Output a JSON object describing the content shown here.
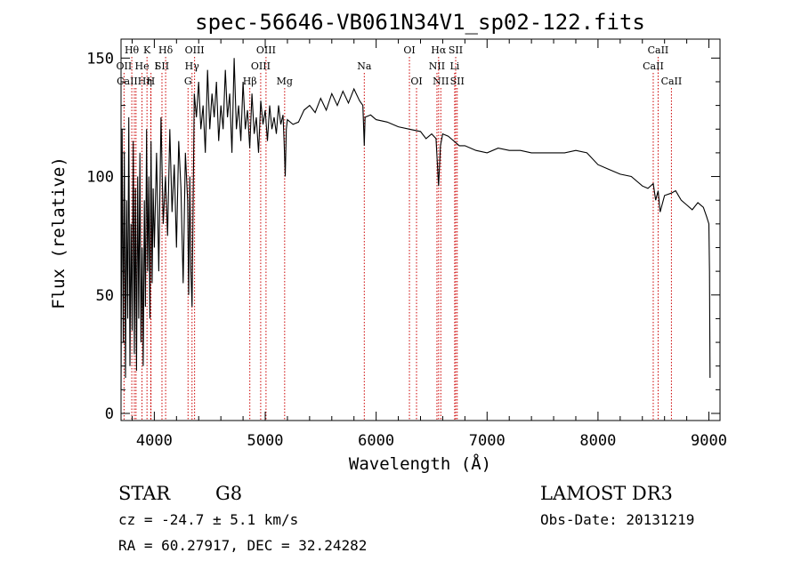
{
  "chart_data": {
    "type": "line",
    "title": "spec-56646-VB061N34V1_sp02-122.fits",
    "xlabel": "Wavelength (Å)",
    "ylabel": "Flux (relative)",
    "xlim": [
      3700,
      9100
    ],
    "ylim": [
      -3,
      158
    ],
    "xticks": [
      4000,
      5000,
      6000,
      7000,
      8000,
      9000
    ],
    "yticks": [
      0,
      50,
      100,
      150
    ],
    "line_color": "#000000",
    "marker_color": "#cc0000",
    "series": [
      {
        "name": "flux",
        "x": [
          3700,
          3710,
          3720,
          3730,
          3740,
          3750,
          3760,
          3770,
          3780,
          3790,
          3800,
          3810,
          3820,
          3830,
          3840,
          3850,
          3860,
          3870,
          3880,
          3890,
          3900,
          3910,
          3920,
          3930,
          3940,
          3950,
          3960,
          3970,
          3980,
          3990,
          4000,
          4020,
          4040,
          4060,
          4080,
          4100,
          4120,
          4140,
          4160,
          4180,
          4200,
          4220,
          4240,
          4260,
          4280,
          4300,
          4310,
          4320,
          4330,
          4340,
          4360,
          4380,
          4400,
          4420,
          4440,
          4460,
          4480,
          4500,
          4520,
          4540,
          4560,
          4580,
          4600,
          4620,
          4640,
          4660,
          4680,
          4700,
          4720,
          4740,
          4760,
          4780,
          4800,
          4820,
          4840,
          4860,
          4880,
          4900,
          4920,
          4940,
          4960,
          4980,
          5000,
          5020,
          5040,
          5060,
          5080,
          5100,
          5120,
          5140,
          5160,
          5170,
          5180,
          5190,
          5200,
          5250,
          5300,
          5350,
          5400,
          5450,
          5500,
          5550,
          5600,
          5650,
          5700,
          5750,
          5800,
          5850,
          5880,
          5893,
          5900,
          5950,
          6000,
          6100,
          6200,
          6300,
          6400,
          6450,
          6500,
          6540,
          6563,
          6580,
          6600,
          6650,
          6700,
          6750,
          6800,
          6900,
          7000,
          7100,
          7200,
          7300,
          7400,
          7500,
          7600,
          7700,
          7800,
          7900,
          8000,
          8100,
          8200,
          8300,
          8400,
          8450,
          8498,
          8520,
          8542,
          8560,
          8600,
          8662,
          8700,
          8750,
          8800,
          8850,
          8900,
          8950,
          8980,
          9000,
          9005,
          9010
        ],
        "values": [
          10,
          120,
          30,
          110,
          15,
          90,
          40,
          125,
          20,
          80,
          35,
          115,
          25,
          95,
          18,
          100,
          40,
          110,
          30,
          70,
          20,
          90,
          45,
          120,
          60,
          100,
          40,
          115,
          55,
          95,
          70,
          110,
          60,
          125,
          80,
          100,
          75,
          120,
          85,
          105,
          70,
          115,
          95,
          55,
          110,
          90,
          50,
          100,
          60,
          45,
          135,
          125,
          140,
          120,
          130,
          110,
          145,
          120,
          135,
          125,
          140,
          115,
          130,
          120,
          145,
          125,
          135,
          110,
          150,
          120,
          130,
          115,
          140,
          120,
          128,
          112,
          135,
          118,
          125,
          110,
          132,
          122,
          128,
          115,
          130,
          120,
          125,
          118,
          130,
          122,
          126,
          115,
          100,
          120,
          124,
          122,
          123,
          128,
          130,
          127,
          133,
          128,
          135,
          130,
          136,
          131,
          137,
          132,
          130,
          113,
          125,
          126,
          124,
          123,
          121,
          120,
          119,
          116,
          118,
          116,
          96,
          113,
          118,
          117,
          115,
          113,
          113,
          111,
          110,
          112,
          111,
          111,
          110,
          110,
          110,
          110,
          111,
          110,
          105,
          103,
          101,
          100,
          96,
          95,
          97,
          90,
          94,
          85,
          92,
          93,
          94,
          90,
          88,
          86,
          89,
          87,
          83,
          80,
          60,
          15
        ]
      }
    ],
    "lines": [
      {
        "label": "Hθ",
        "x": 3797,
        "row": 0,
        "dx": 0
      },
      {
        "label": "OII",
        "x": 3727,
        "row": 1,
        "dx": 0
      },
      {
        "label": "CaII",
        "x": 3820,
        "row": 2,
        "dx": -8
      },
      {
        "label": "Hη",
        "x": 3835,
        "row": 2,
        "dx": 10
      },
      {
        "label": "He",
        "x": 3889,
        "row": 1,
        "dx": 0
      },
      {
        "label": "K",
        "x": 3934,
        "row": 0,
        "dx": 0
      },
      {
        "label": "H",
        "x": 3968,
        "row": 2,
        "dx": 0
      },
      {
        "label": "I",
        "x": 3970,
        "row": 1,
        "dx": 6
      },
      {
        "label": "SII",
        "x": 4069,
        "row": 1,
        "dx": 0
      },
      {
        "label": "Hδ",
        "x": 4102,
        "row": 0,
        "dx": 0
      },
      {
        "label": "OIII",
        "x": 4363,
        "row": 0,
        "dx": 0
      },
      {
        "label": "Hγ",
        "x": 4340,
        "row": 1,
        "dx": 0
      },
      {
        "label": "G",
        "x": 4304,
        "row": 2,
        "dx": 0
      },
      {
        "label": "Hβ",
        "x": 4861,
        "row": 2,
        "dx": 0
      },
      {
        "label": "OIII",
        "x": 5007,
        "row": 0,
        "dx": 0
      },
      {
        "label": "OIII",
        "x": 4959,
        "row": 1,
        "dx": 0
      },
      {
        "label": "Mg",
        "x": 5175,
        "row": 2,
        "dx": 0
      },
      {
        "label": "Na",
        "x": 5893,
        "row": 1,
        "dx": 0
      },
      {
        "label": "OI",
        "x": 6300,
        "row": 0,
        "dx": 0
      },
      {
        "label": "OI",
        "x": 6364,
        "row": 2,
        "dx": 0
      },
      {
        "label": "Hα",
        "x": 6563,
        "row": 0,
        "dx": 0
      },
      {
        "label": "NII",
        "x": 6548,
        "row": 1,
        "dx": 0
      },
      {
        "label": "NII",
        "x": 6583,
        "row": 2,
        "dx": 0
      },
      {
        "label": "SII",
        "x": 6717,
        "row": 0,
        "dx": 0
      },
      {
        "label": "Li",
        "x": 6708,
        "row": 1,
        "dx": 0
      },
      {
        "label": "SII",
        "x": 6731,
        "row": 2,
        "dx": 0
      },
      {
        "label": "CaII",
        "x": 8542,
        "row": 0,
        "dx": 0
      },
      {
        "label": "CaII",
        "x": 8498,
        "row": 1,
        "dx": 0
      },
      {
        "label": "CaII",
        "x": 8662,
        "row": 2,
        "dx": 0
      }
    ]
  },
  "info": {
    "object_class": "STAR",
    "subclass": "G8",
    "survey": "LAMOST DR3",
    "cz": "cz = -24.7 ± 5.1 km/s",
    "obs_date": "Obs-Date: 20131219",
    "coords": "RA =  60.27917, DEC =  32.24282"
  }
}
